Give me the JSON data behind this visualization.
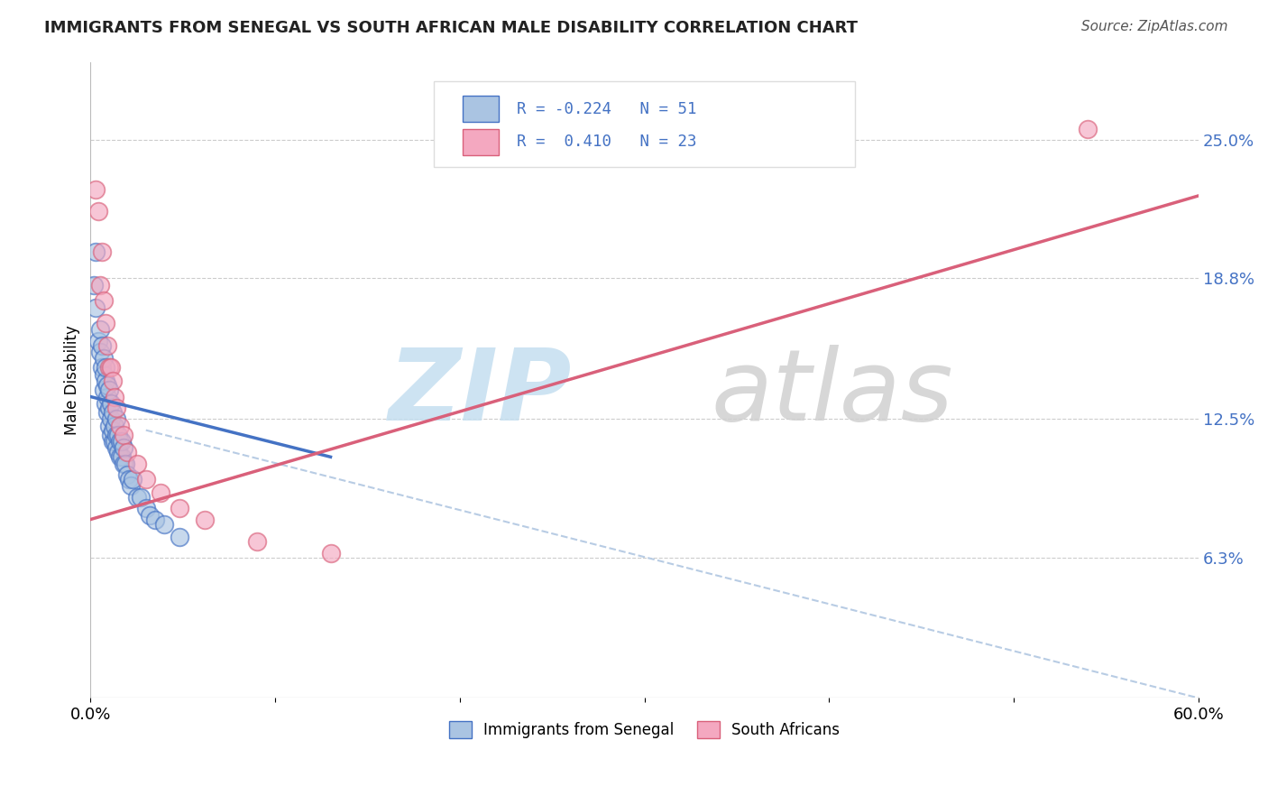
{
  "title": "IMMIGRANTS FROM SENEGAL VS SOUTH AFRICAN MALE DISABILITY CORRELATION CHART",
  "source": "Source: ZipAtlas.com",
  "ylabel": "Male Disability",
  "x_min": 0.0,
  "x_max": 0.6,
  "y_min": 0.0,
  "y_max": 0.285,
  "x_ticks": [
    0.0,
    0.1,
    0.2,
    0.3,
    0.4,
    0.5,
    0.6
  ],
  "x_tick_labels": [
    "0.0%",
    "",
    "",
    "",
    "",
    "",
    "60.0%"
  ],
  "y_tick_labels_right": [
    "6.3%",
    "12.5%",
    "18.8%",
    "25.0%"
  ],
  "y_ticks_right": [
    0.063,
    0.125,
    0.188,
    0.25
  ],
  "legend_r1": "R = -0.224",
  "legend_n1": "N = 51",
  "legend_r2": "R =  0.410",
  "legend_n2": "N = 23",
  "color_blue": "#aac4e2",
  "color_pink": "#f4a8c0",
  "color_blue_line": "#4472c4",
  "color_pink_line": "#d9607a",
  "color_dashed": "#b8cce4",
  "blue_label": "Immigrants from Senegal",
  "pink_label": "South Africans",
  "blue_scatter_x": [
    0.002,
    0.003,
    0.003,
    0.004,
    0.005,
    0.005,
    0.006,
    0.006,
    0.007,
    0.007,
    0.007,
    0.008,
    0.008,
    0.008,
    0.009,
    0.009,
    0.009,
    0.01,
    0.01,
    0.01,
    0.011,
    0.011,
    0.011,
    0.012,
    0.012,
    0.012,
    0.013,
    0.013,
    0.014,
    0.014,
    0.014,
    0.015,
    0.015,
    0.016,
    0.016,
    0.017,
    0.017,
    0.018,
    0.018,
    0.019,
    0.02,
    0.021,
    0.022,
    0.023,
    0.025,
    0.027,
    0.03,
    0.032,
    0.035,
    0.04,
    0.048
  ],
  "blue_scatter_y": [
    0.185,
    0.2,
    0.175,
    0.16,
    0.165,
    0.155,
    0.148,
    0.158,
    0.145,
    0.138,
    0.152,
    0.132,
    0.142,
    0.148,
    0.128,
    0.135,
    0.14,
    0.122,
    0.13,
    0.138,
    0.118,
    0.125,
    0.132,
    0.115,
    0.12,
    0.128,
    0.115,
    0.122,
    0.112,
    0.118,
    0.125,
    0.11,
    0.118,
    0.108,
    0.115,
    0.108,
    0.115,
    0.105,
    0.112,
    0.105,
    0.1,
    0.098,
    0.095,
    0.098,
    0.09,
    0.09,
    0.085,
    0.082,
    0.08,
    0.078,
    0.072
  ],
  "pink_scatter_x": [
    0.003,
    0.004,
    0.005,
    0.006,
    0.007,
    0.008,
    0.009,
    0.01,
    0.011,
    0.012,
    0.013,
    0.014,
    0.016,
    0.018,
    0.02,
    0.025,
    0.03,
    0.038,
    0.048,
    0.062,
    0.09,
    0.13,
    0.54
  ],
  "pink_scatter_y": [
    0.228,
    0.218,
    0.185,
    0.2,
    0.178,
    0.168,
    0.158,
    0.148,
    0.148,
    0.142,
    0.135,
    0.13,
    0.122,
    0.118,
    0.11,
    0.105,
    0.098,
    0.092,
    0.085,
    0.08,
    0.07,
    0.065,
    0.255
  ],
  "blue_line_x": [
    0.0,
    0.13
  ],
  "blue_line_y": [
    0.135,
    0.108
  ],
  "pink_line_x": [
    0.0,
    0.6
  ],
  "pink_line_y": [
    0.08,
    0.225
  ],
  "dashed_line_x": [
    0.03,
    0.6
  ],
  "dashed_line_y": [
    0.12,
    0.0
  ]
}
